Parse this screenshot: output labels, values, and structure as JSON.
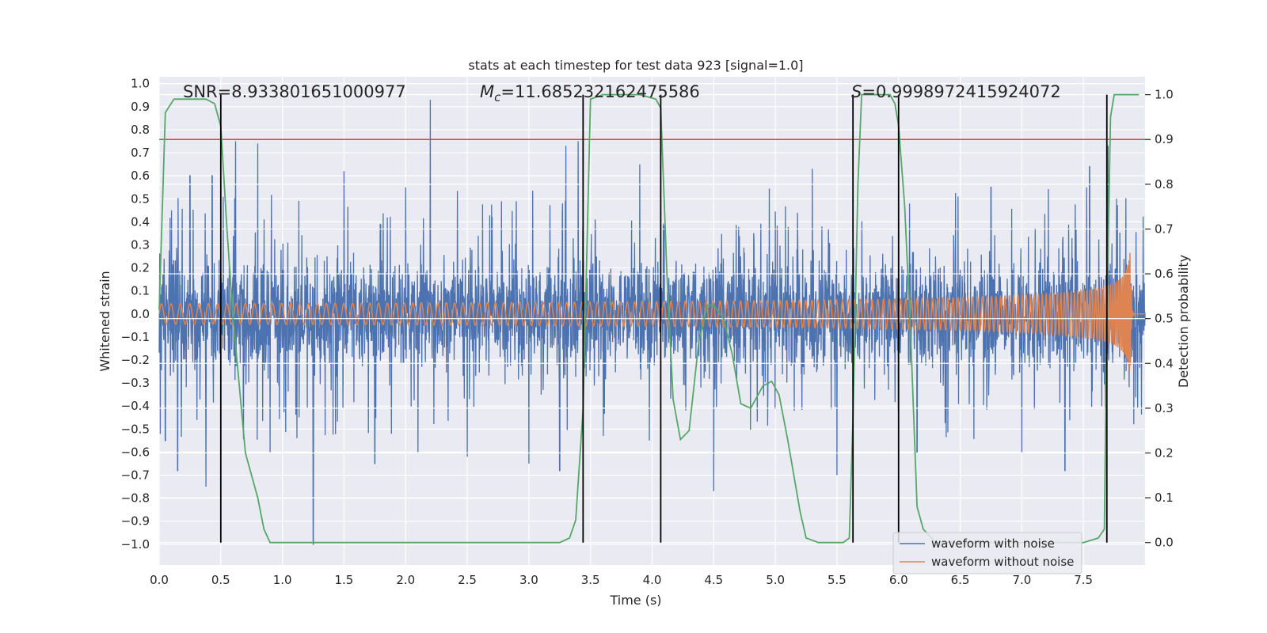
{
  "chart_data": {
    "type": "line",
    "title": "stats at each timestep for test data 923 [signal=1.0]",
    "xlabel": "Time (s)",
    "ylabel": "Whitened strain",
    "ylabel_right": "Detection probability",
    "xlim": [
      0.0,
      8.0
    ],
    "ylim": [
      -1.09,
      1.03
    ],
    "ylim_right": [
      -0.05,
      1.04
    ],
    "xticks": [
      "0.0",
      "0.5",
      "1.0",
      "1.5",
      "2.0",
      "2.5",
      "3.0",
      "3.5",
      "4.0",
      "4.5",
      "5.0",
      "5.5",
      "6.0",
      "6.5",
      "7.0",
      "7.5"
    ],
    "yticks": [
      "1.0",
      "0.9",
      "0.8",
      "0.7",
      "0.6",
      "0.5",
      "0.4",
      "0.3",
      "0.2",
      "0.1",
      "0.0",
      "−0.1",
      "−0.2",
      "−0.3",
      "−0.4",
      "−0.5",
      "−0.6",
      "−0.7",
      "−0.8",
      "−0.9",
      "−1.0"
    ],
    "yticks_right": [
      "1.0",
      "0.9",
      "0.8",
      "0.7",
      "0.6",
      "0.5",
      "0.4",
      "0.3",
      "0.2",
      "0.1",
      "0.0"
    ],
    "annotations": {
      "snr": "SNR=8.933801651000977",
      "mc_symbol": "M",
      "mc_sub": "c",
      "mc_value": "=11.685232162475586",
      "s_symbol": "S",
      "s_value": "=0.9998972415924072"
    },
    "threshold_right": 0.9,
    "vlines": [
      0.5,
      3.44,
      4.07,
      5.63,
      6.0,
      7.69
    ],
    "series": [
      {
        "name": "waveform with noise",
        "color": "#4c72b0",
        "noise_band": [
          -0.35,
          0.35
        ],
        "spikes": [
          [
            0.05,
            -0.55
          ],
          [
            0.1,
            0.45
          ],
          [
            0.15,
            -0.68
          ],
          [
            0.25,
            0.6
          ],
          [
            0.38,
            -0.75
          ],
          [
            0.43,
            0.6
          ],
          [
            0.62,
            0.75
          ],
          [
            0.8,
            0.74
          ],
          [
            0.9,
            -0.6
          ],
          [
            1.25,
            -1.0
          ],
          [
            1.5,
            0.62
          ],
          [
            1.75,
            -0.65
          ],
          [
            2.0,
            0.55
          ],
          [
            2.1,
            -0.6
          ],
          [
            2.2,
            0.93
          ],
          [
            2.5,
            -0.62
          ],
          [
            3.0,
            -0.65
          ],
          [
            3.25,
            -0.68
          ],
          [
            3.3,
            0.73
          ],
          [
            3.4,
            0.75
          ],
          [
            3.9,
            0.65
          ],
          [
            4.5,
            -0.77
          ],
          [
            5.3,
            0.63
          ],
          [
            5.5,
            -0.7
          ],
          [
            6.0,
            0.62
          ],
          [
            6.15,
            -0.6
          ],
          [
            6.75,
            0.55
          ],
          [
            7.0,
            -0.6
          ],
          [
            7.35,
            -0.68
          ],
          [
            7.55,
            0.64
          ],
          [
            7.7,
            0.73
          ]
        ]
      },
      {
        "name": "waveform without noise",
        "color": "#dd8452",
        "merger_time": 7.88,
        "peak_amplitude": 0.3
      },
      {
        "name": "detection probability",
        "color": "#55a868",
        "axis": "right",
        "x": [
          0.0,
          0.05,
          0.12,
          0.25,
          0.38,
          0.45,
          0.5,
          0.55,
          0.6,
          0.65,
          0.7,
          0.8,
          0.85,
          0.9,
          1.0,
          3.25,
          3.33,
          3.38,
          3.44,
          3.5,
          3.6,
          3.75,
          3.9,
          4.03,
          4.07,
          4.12,
          4.17,
          4.23,
          4.3,
          4.38,
          4.45,
          4.5,
          4.58,
          4.65,
          4.72,
          4.8,
          4.9,
          4.97,
          5.03,
          5.1,
          5.2,
          5.25,
          5.35,
          5.45,
          5.55,
          5.6,
          5.63,
          5.67,
          5.7,
          5.75,
          5.93,
          5.97,
          6.0,
          6.05,
          6.1,
          6.15,
          6.2,
          6.3,
          6.4,
          6.5,
          6.75,
          7.0,
          7.25,
          7.5,
          7.62,
          7.67,
          7.69,
          7.72,
          7.75,
          7.8,
          7.85,
          7.9,
          7.95
        ],
        "y": [
          0.52,
          0.96,
          0.99,
          0.99,
          0.99,
          0.98,
          0.93,
          0.7,
          0.5,
          0.35,
          0.2,
          0.1,
          0.03,
          0.0,
          0.0,
          0.0,
          0.01,
          0.05,
          0.3,
          0.99,
          1.0,
          1.0,
          1.0,
          0.99,
          0.97,
          0.6,
          0.32,
          0.23,
          0.25,
          0.45,
          0.53,
          0.53,
          0.5,
          0.42,
          0.31,
          0.3,
          0.35,
          0.36,
          0.33,
          0.23,
          0.07,
          0.01,
          0.0,
          0.0,
          0.0,
          0.01,
          0.28,
          0.8,
          1.0,
          1.0,
          1.0,
          0.98,
          0.93,
          0.75,
          0.45,
          0.08,
          0.03,
          0.0,
          0.0,
          0.0,
          0.0,
          0.0,
          0.0,
          0.0,
          0.01,
          0.03,
          0.5,
          0.95,
          1.0,
          1.0,
          1.0,
          1.0,
          1.0
        ]
      }
    ],
    "legend": [
      {
        "label": "waveform with noise",
        "color": "#4c72b0"
      },
      {
        "label": "waveform without noise",
        "color": "#dd8452"
      }
    ],
    "legend_position": "bottom-right",
    "grid": true,
    "colors": {
      "plot_bg": "#eaeaf2",
      "grid": "#ffffff",
      "threshold": "#c44e52",
      "vline": "#000000"
    }
  }
}
